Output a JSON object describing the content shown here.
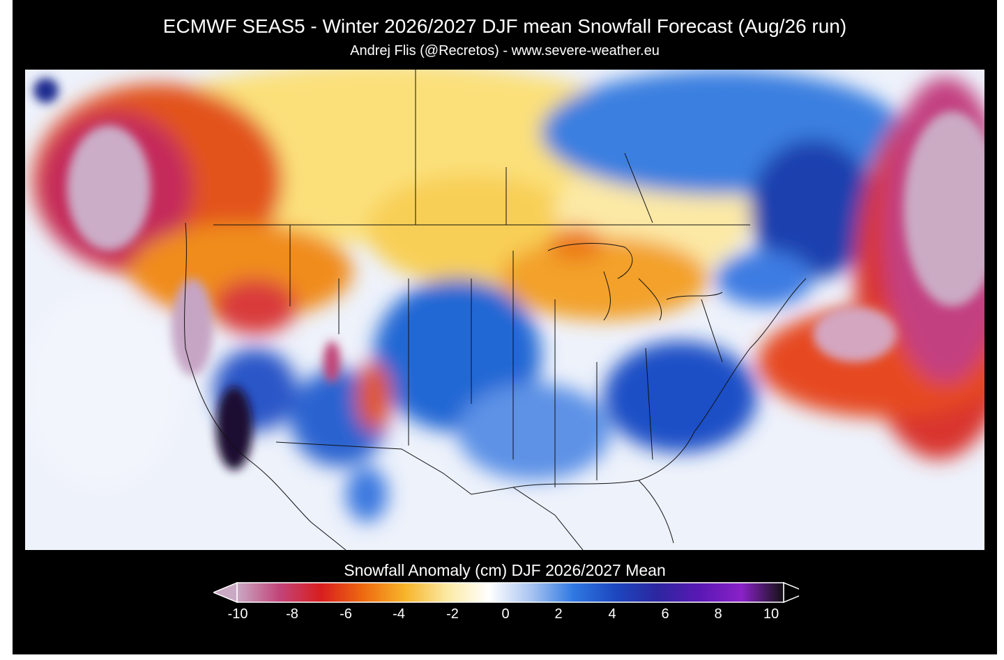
{
  "header": {
    "title": "ECMWF SEAS5 - Winter 2026/2027 DJF mean Snowfall Forecast (Aug/26 run)",
    "subtitle": "Andrej Flis (@Recretos) - www.severe-weather.eu"
  },
  "map": {
    "region": "North America",
    "variable": "Snowfall anomaly"
  },
  "legend": {
    "title": "Snowfall Anomaly (cm) DJF 2026/2027 Mean",
    "min": -10,
    "max": 10,
    "ticks": [
      "-10",
      "-8",
      "-6",
      "-4",
      "-2",
      "0",
      "2",
      "4",
      "6",
      "8",
      "10"
    ],
    "colors": [
      "#c9a9c3",
      "#c2457a",
      "#d81e1e",
      "#ee6a10",
      "#f7b52a",
      "#fbeaa4",
      "#ffffff",
      "#a8c4f0",
      "#2f78e2",
      "#1d47bf",
      "#2c26a0",
      "#5a18b4",
      "#8a22c8",
      "#111111"
    ]
  }
}
